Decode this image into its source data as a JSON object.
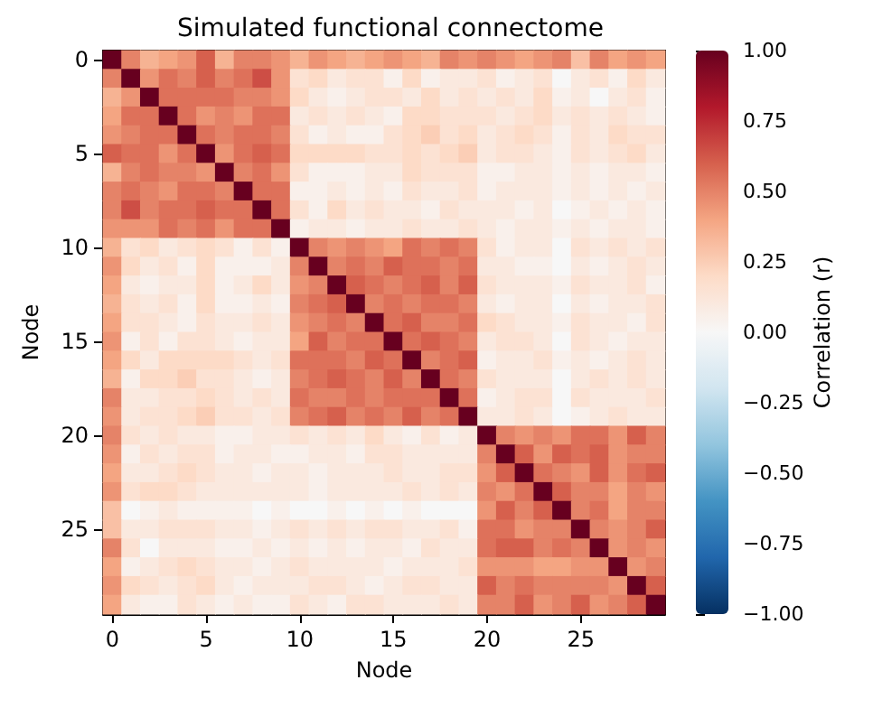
{
  "chart_data": {
    "type": "heatmap",
    "title": "Simulated functional connectome",
    "xlabel": "Node",
    "ylabel": "Node",
    "clabel": "Correlation (r)",
    "categories": [
      "0",
      null,
      null,
      null,
      null,
      "5",
      null,
      null,
      null,
      null,
      "10",
      null,
      null,
      null,
      null,
      "15",
      null,
      null,
      null,
      null,
      "20",
      null,
      null,
      null,
      null,
      "25",
      null,
      null,
      null,
      null
    ],
    "y_categories": [
      "0",
      null,
      null,
      null,
      null,
      "5",
      null,
      null,
      null,
      null,
      "10",
      null,
      null,
      null,
      null,
      "15",
      null,
      null,
      null,
      null,
      "20",
      null,
      null,
      null,
      null,
      "25",
      null,
      null,
      null,
      null
    ],
    "clim": [
      -1,
      1
    ],
    "cticks": [
      {
        "value": -1,
        "label": "−1.00"
      },
      {
        "value": -0.75,
        "label": "−0.75"
      },
      {
        "value": -0.5,
        "label": "−0.50"
      },
      {
        "value": -0.25,
        "label": "−0.25"
      },
      {
        "value": 0,
        "label": "0.00"
      },
      {
        "value": 0.25,
        "label": "0.25"
      },
      {
        "value": 0.5,
        "label": "0.50"
      },
      {
        "value": 0.75,
        "label": "0.75"
      },
      {
        "value": 1,
        "label": "1.00"
      }
    ],
    "cells": [
      [
        1,
        0.5,
        0.35,
        0.4,
        0.45,
        0.6,
        0.35,
        0.5,
        0.5,
        0.45,
        0.35,
        0.45,
        0.4,
        0.35,
        0.4,
        0.45,
        0.4,
        0.35,
        0.5,
        0.45,
        0.5,
        0.45,
        0.4,
        0.45,
        0.5,
        0.3,
        0.5,
        0.4,
        0.45,
        0.4
      ],
      [
        0.5,
        1,
        0.45,
        0.55,
        0.5,
        0.6,
        0.5,
        0.55,
        0.65,
        0.45,
        0.15,
        0.2,
        0.1,
        0.15,
        0.15,
        0.05,
        0.2,
        0.05,
        0.1,
        0.1,
        0.15,
        0.05,
        0.1,
        0.15,
        0,
        0.1,
        0.15,
        0.05,
        0.2,
        0.1
      ],
      [
        0.35,
        0.45,
        1,
        0.55,
        0.55,
        0.55,
        0.55,
        0.5,
        0.5,
        0.45,
        0.2,
        0.1,
        0.05,
        0.1,
        0.15,
        0.15,
        0.1,
        0.2,
        0.1,
        0.15,
        0.1,
        0.15,
        0.1,
        0.2,
        0.05,
        0.1,
        0,
        0.1,
        0.15,
        0.05
      ],
      [
        0.4,
        0.55,
        0.55,
        1,
        0.55,
        0.45,
        0.5,
        0.45,
        0.55,
        0.55,
        0.1,
        0.15,
        0.1,
        0.15,
        0.1,
        0.05,
        0.2,
        0.2,
        0.15,
        0.15,
        0.15,
        0.1,
        0.15,
        0.2,
        0.1,
        0.15,
        0.1,
        0.15,
        0.1,
        0.05
      ],
      [
        0.45,
        0.5,
        0.55,
        0.55,
        1,
        0.55,
        0.5,
        0.55,
        0.55,
        0.5,
        0.15,
        0.05,
        0.1,
        0.05,
        0.05,
        0.15,
        0.2,
        0.25,
        0.15,
        0.2,
        0.1,
        0.15,
        0.2,
        0.15,
        0.05,
        0.15,
        0.1,
        0.2,
        0.15,
        0.15
      ],
      [
        0.6,
        0.55,
        0.55,
        0.45,
        0.55,
        1,
        0.45,
        0.55,
        0.6,
        0.55,
        0.2,
        0.2,
        0.2,
        0.2,
        0.15,
        0.15,
        0.2,
        0.15,
        0.2,
        0.25,
        0.1,
        0.15,
        0.15,
        0.1,
        0.05,
        0.15,
        0.1,
        0.15,
        0.2,
        0.1
      ],
      [
        0.35,
        0.5,
        0.55,
        0.5,
        0.5,
        0.45,
        1,
        0.5,
        0.55,
        0.45,
        0.15,
        0.05,
        0.05,
        0.05,
        0.1,
        0.1,
        0.2,
        0.15,
        0.15,
        0.15,
        0.05,
        0.05,
        0.1,
        0.1,
        0.05,
        0.1,
        0.05,
        0.1,
        0.1,
        0.05
      ],
      [
        0.5,
        0.55,
        0.5,
        0.45,
        0.55,
        0.55,
        0.5,
        1,
        0.55,
        0.55,
        0.05,
        0.05,
        0.1,
        0.05,
        0.1,
        0.05,
        0.15,
        0.1,
        0.1,
        0.15,
        0.05,
        0.1,
        0.1,
        0.1,
        0.05,
        0.1,
        0.05,
        0.1,
        0.05,
        0.1
      ],
      [
        0.5,
        0.65,
        0.5,
        0.55,
        0.55,
        0.6,
        0.55,
        0.55,
        1,
        0.55,
        0.15,
        0.05,
        0.2,
        0.1,
        0.15,
        0.1,
        0.1,
        0.05,
        0.15,
        0.1,
        0.1,
        0.1,
        0.05,
        0.1,
        0,
        0.05,
        0.1,
        0.05,
        0.1,
        0.05
      ],
      [
        0.45,
        0.45,
        0.45,
        0.55,
        0.5,
        0.55,
        0.45,
        0.55,
        0.55,
        1,
        0.05,
        0.1,
        0.1,
        0.05,
        0.1,
        0.1,
        0.15,
        0.1,
        0.1,
        0.15,
        0.1,
        0.05,
        0.1,
        0.1,
        0.05,
        0.1,
        0.05,
        0.1,
        0.1,
        0.05
      ],
      [
        0.35,
        0.15,
        0.2,
        0.1,
        0.15,
        0.2,
        0.15,
        0.05,
        0.15,
        0.05,
        1,
        0.5,
        0.45,
        0.5,
        0.45,
        0.4,
        0.55,
        0.5,
        0.55,
        0.5,
        0.15,
        0.05,
        0.1,
        0.1,
        0,
        0.15,
        0.1,
        0.15,
        0.1,
        0.15
      ],
      [
        0.45,
        0.2,
        0.1,
        0.15,
        0.05,
        0.2,
        0.05,
        0.05,
        0.05,
        0.1,
        0.5,
        1,
        0.5,
        0.55,
        0.5,
        0.6,
        0.55,
        0.55,
        0.5,
        0.55,
        0.1,
        0.1,
        0.05,
        0.05,
        0,
        0.1,
        0.05,
        0.1,
        0.15,
        0.1
      ],
      [
        0.4,
        0.1,
        0.05,
        0.1,
        0.1,
        0.2,
        0.05,
        0.1,
        0.2,
        0.1,
        0.45,
        0.5,
        1,
        0.6,
        0.55,
        0.5,
        0.55,
        0.6,
        0.5,
        0.6,
        0.15,
        0.1,
        0.1,
        0.1,
        0.05,
        0.15,
        0.1,
        0.1,
        0.15,
        0.05
      ],
      [
        0.35,
        0.15,
        0.1,
        0.15,
        0.05,
        0.2,
        0.05,
        0.05,
        0.1,
        0.05,
        0.5,
        0.55,
        0.6,
        1,
        0.5,
        0.55,
        0.5,
        0.55,
        0.55,
        0.5,
        0.1,
        0.05,
        0.1,
        0.1,
        0,
        0.1,
        0.05,
        0.1,
        0.1,
        0.15
      ],
      [
        0.4,
        0.15,
        0.15,
        0.1,
        0.05,
        0.15,
        0.1,
        0.1,
        0.15,
        0.1,
        0.45,
        0.5,
        0.55,
        0.5,
        1,
        0.55,
        0.6,
        0.5,
        0.5,
        0.55,
        0.2,
        0.15,
        0.1,
        0.1,
        0.05,
        0.15,
        0.1,
        0.1,
        0.05,
        0.15
      ],
      [
        0.45,
        0.05,
        0.15,
        0.05,
        0.15,
        0.15,
        0.1,
        0.05,
        0.1,
        0.1,
        0.4,
        0.6,
        0.5,
        0.55,
        0.55,
        1,
        0.55,
        0.6,
        0.55,
        0.5,
        0.1,
        0.15,
        0.15,
        0.1,
        0,
        0.15,
        0.1,
        0.05,
        0.1,
        0.1
      ],
      [
        0.4,
        0.2,
        0.1,
        0.2,
        0.2,
        0.2,
        0.2,
        0.15,
        0.1,
        0.15,
        0.55,
        0.55,
        0.55,
        0.5,
        0.6,
        0.55,
        1,
        0.5,
        0.55,
        0.6,
        0.05,
        0.1,
        0.1,
        0.15,
        0.05,
        0.1,
        0.05,
        0.1,
        0.15,
        0.1
      ],
      [
        0.35,
        0.05,
        0.2,
        0.2,
        0.25,
        0.15,
        0.15,
        0.1,
        0.05,
        0.1,
        0.5,
        0.55,
        0.6,
        0.55,
        0.5,
        0.6,
        0.5,
        1,
        0.55,
        0.5,
        0.15,
        0.1,
        0.1,
        0.1,
        0,
        0.1,
        0.15,
        0.1,
        0.15,
        0.1
      ],
      [
        0.5,
        0.1,
        0.1,
        0.15,
        0.15,
        0.2,
        0.15,
        0.1,
        0.15,
        0.1,
        0.55,
        0.5,
        0.5,
        0.55,
        0.5,
        0.55,
        0.55,
        0.55,
        1,
        0.55,
        0.05,
        0.1,
        0.15,
        0.15,
        0,
        0.15,
        0.1,
        0.1,
        0.1,
        0.15
      ],
      [
        0.45,
        0.1,
        0.15,
        0.15,
        0.2,
        0.25,
        0.15,
        0.15,
        0.1,
        0.15,
        0.5,
        0.55,
        0.6,
        0.5,
        0.55,
        0.5,
        0.6,
        0.5,
        0.55,
        1,
        0.1,
        0.1,
        0.15,
        0.1,
        0,
        0.05,
        0.1,
        0.15,
        0.1,
        0.1
      ],
      [
        0.5,
        0.15,
        0.1,
        0.15,
        0.1,
        0.1,
        0.05,
        0.05,
        0.1,
        0.1,
        0.15,
        0.1,
        0.15,
        0.1,
        0.2,
        0.1,
        0.05,
        0.15,
        0.05,
        0.1,
        1,
        0.5,
        0.45,
        0.5,
        0.45,
        0.55,
        0.55,
        0.45,
        0.6,
        0.5
      ],
      [
        0.45,
        0.05,
        0.15,
        0.1,
        0.15,
        0.15,
        0.05,
        0.1,
        0.1,
        0.05,
        0.05,
        0.1,
        0.1,
        0.05,
        0.15,
        0.15,
        0.1,
        0.1,
        0.1,
        0.1,
        0.5,
        1,
        0.6,
        0.45,
        0.6,
        0.55,
        0.6,
        0.45,
        0.5,
        0.5
      ],
      [
        0.4,
        0.1,
        0.1,
        0.15,
        0.2,
        0.15,
        0.1,
        0.1,
        0.05,
        0.1,
        0.1,
        0.05,
        0.1,
        0.1,
        0.1,
        0.15,
        0.1,
        0.1,
        0.15,
        0.15,
        0.45,
        0.6,
        1,
        0.55,
        0.5,
        0.45,
        0.6,
        0.45,
        0.55,
        0.6
      ],
      [
        0.45,
        0.15,
        0.2,
        0.2,
        0.15,
        0.1,
        0.1,
        0.1,
        0.1,
        0.1,
        0.1,
        0.05,
        0.1,
        0.1,
        0.1,
        0.1,
        0.15,
        0.1,
        0.15,
        0.1,
        0.5,
        0.45,
        0.55,
        1,
        0.6,
        0.5,
        0.5,
        0.4,
        0.5,
        0.45
      ],
      [
        0.3,
        0,
        0.05,
        0.1,
        0.05,
        0.05,
        0.05,
        0.05,
        0,
        0.05,
        0,
        0,
        0.05,
        0,
        0.05,
        0,
        0.05,
        0,
        0,
        0,
        0.45,
        0.6,
        0.5,
        0.6,
        1,
        0.5,
        0.55,
        0.4,
        0.5,
        0.5
      ],
      [
        0.3,
        0.1,
        0.1,
        0.15,
        0.15,
        0.15,
        0.1,
        0.1,
        0.05,
        0.1,
        0.15,
        0.1,
        0.15,
        0.1,
        0.15,
        0.15,
        0.1,
        0.1,
        0.15,
        0.05,
        0.55,
        0.55,
        0.45,
        0.5,
        0.5,
        1,
        0.5,
        0.45,
        0.5,
        0.6
      ],
      [
        0.5,
        0.15,
        0,
        0.1,
        0.1,
        0.1,
        0.05,
        0.05,
        0.1,
        0.05,
        0.1,
        0.05,
        0.1,
        0.05,
        0.1,
        0.1,
        0.05,
        0.15,
        0.1,
        0.1,
        0.55,
        0.6,
        0.6,
        0.5,
        0.55,
        0.5,
        1,
        0.45,
        0.5,
        0.45
      ],
      [
        0.4,
        0.05,
        0.1,
        0.15,
        0.2,
        0.15,
        0.1,
        0.1,
        0.05,
        0.1,
        0.15,
        0.1,
        0.1,
        0.1,
        0.1,
        0.05,
        0.1,
        0.1,
        0.1,
        0.15,
        0.45,
        0.45,
        0.45,
        0.4,
        0.4,
        0.45,
        0.45,
        1,
        0.45,
        0.5
      ],
      [
        0.45,
        0.2,
        0.15,
        0.1,
        0.15,
        0.2,
        0.1,
        0.05,
        0.1,
        0.1,
        0.1,
        0.15,
        0.15,
        0.1,
        0.05,
        0.1,
        0.15,
        0.15,
        0.1,
        0.1,
        0.6,
        0.5,
        0.55,
        0.5,
        0.5,
        0.5,
        0.5,
        0.45,
        1,
        0.6
      ],
      [
        0.4,
        0.1,
        0.05,
        0.05,
        0.15,
        0.1,
        0.05,
        0.1,
        0.05,
        0.05,
        0.15,
        0.1,
        0.05,
        0.15,
        0.15,
        0.1,
        0.1,
        0.1,
        0.15,
        0.1,
        0.5,
        0.5,
        0.6,
        0.45,
        0.5,
        0.6,
        0.45,
        0.5,
        0.6,
        1
      ]
    ]
  }
}
